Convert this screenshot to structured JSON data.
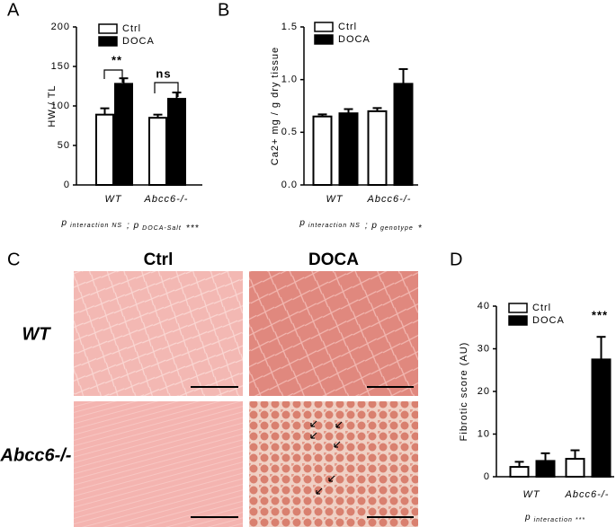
{
  "chart_data": [
    {
      "type": "bar",
      "panel": "A",
      "ylabel": "HW / TL",
      "categories": [
        "WT",
        "Abcc6-/-"
      ],
      "series": [
        {
          "name": "Ctrl",
          "color": "#ffffff",
          "values": [
            89,
            85
          ],
          "errors": [
            8,
            4
          ]
        },
        {
          "name": "DOCA",
          "color": "#000000",
          "values": [
            128,
            109
          ],
          "errors": [
            7,
            8
          ]
        }
      ],
      "ylim": [
        0,
        200
      ],
      "yticks": [
        0,
        50,
        100,
        150,
        200
      ],
      "annotations": [
        "**",
        "ns"
      ],
      "footnote": [
        {
          "text": "p",
          "sub": "interaction NS"
        },
        {
          "text": "; p",
          "sub": "DOCA-Salt"
        },
        {
          "text": "***"
        }
      ]
    },
    {
      "type": "bar",
      "panel": "B",
      "ylabel": "Ca2+ mg / g dry tissue",
      "categories": [
        "WT",
        "Abcc6-/-"
      ],
      "series": [
        {
          "name": "Ctrl",
          "color": "#ffffff",
          "values": [
            0.65,
            0.7
          ],
          "errors": [
            0.02,
            0.03
          ]
        },
        {
          "name": "DOCA",
          "color": "#000000",
          "values": [
            0.68,
            0.96
          ],
          "errors": [
            0.04,
            0.14
          ]
        }
      ],
      "ylim": [
        0,
        1.5
      ],
      "yticks": [
        {
          "value": 0,
          "label": "0.0"
        },
        {
          "value": 0.5,
          "label": "0.5"
        },
        {
          "value": 1,
          "label": "1.0"
        },
        {
          "value": 1.5,
          "label": "1.5"
        }
      ],
      "annotations": [],
      "footnote": [
        {
          "text": "p",
          "sub": "interaction NS"
        },
        {
          "text": "; p",
          "sub": "genotype"
        },
        {
          "text": "*"
        }
      ]
    },
    {
      "type": "bar",
      "panel": "D",
      "ylabel": "Fibrotic score (AU)",
      "categories": [
        "WT",
        "Abcc6-/-"
      ],
      "series": [
        {
          "name": "Ctrl",
          "color": "#ffffff",
          "values": [
            2.3,
            4.2
          ],
          "errors": [
            1.2,
            2
          ]
        },
        {
          "name": "DOCA",
          "color": "#000000",
          "values": [
            3.7,
            27.5
          ],
          "errors": [
            1.8,
            5.3
          ]
        }
      ],
      "ylim": [
        0,
        40
      ],
      "yticks": [
        0,
        10,
        20,
        30,
        40
      ],
      "annotations": [
        "***"
      ],
      "footnote": [
        {
          "text": "p",
          "sub": "interaction ***"
        }
      ]
    }
  ],
  "histology": {
    "panel": "C",
    "columns": [
      "Ctrl",
      "DOCA"
    ],
    "rows": [
      "WT",
      "Abcc6-/-"
    ]
  }
}
